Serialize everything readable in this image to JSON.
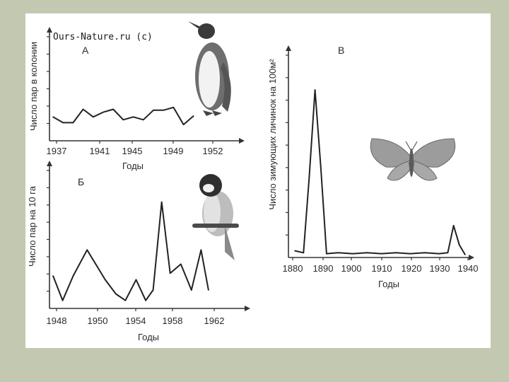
{
  "watermark": "Ours-Nature.ru (c)",
  "chart_data": [
    {
      "type": "line",
      "panel_label": "А",
      "xlabel": "Годы",
      "ylabel": "Число пар в колонии",
      "x_ticks": [
        1937,
        1941,
        1945,
        1949,
        1952
      ],
      "xlim": [
        1937,
        1952
      ],
      "ylim": [
        0,
        10
      ],
      "x": [
        1937,
        1938,
        1939,
        1940,
        1941,
        1942,
        1943,
        1944,
        1945,
        1946,
        1947,
        1948,
        1949,
        1950,
        1951
      ],
      "y": [
        2.2,
        1.6,
        1.6,
        3.0,
        2.2,
        2.7,
        3.0,
        1.9,
        2.2,
        1.9,
        2.9,
        2.9,
        3.2,
        1.4,
        2.3
      ],
      "picture": "penguin-icon",
      "grid": false
    },
    {
      "type": "line",
      "panel_label": "Б",
      "xlabel": "Годы",
      "ylabel": "Число пар на 10 га",
      "x_ticks": [
        1948,
        1950,
        1954,
        1958,
        1962
      ],
      "xlim": [
        1947.6,
        1963.2
      ],
      "ylim": [
        0,
        10
      ],
      "x": [
        1947.6,
        1948.5,
        1949.5,
        1950.8,
        1952.5,
        1953.5,
        1954.4,
        1955.4,
        1956.3,
        1957.0,
        1957.8,
        1958.6,
        1959.6,
        1960.6,
        1961.5,
        1962.2
      ],
      "y": [
        2.3,
        0.4,
        2.3,
        4.3,
        2.0,
        0.9,
        0.4,
        2.0,
        0.4,
        1.2,
        8.0,
        2.5,
        3.2,
        1.2,
        4.3,
        1.2
      ],
      "picture": "tit-bird-icon",
      "grid": false
    },
    {
      "type": "line",
      "panel_label": "В",
      "xlabel": "Годы",
      "ylabel": "Число зимующих личинок на 100м²",
      "x_ticks": [
        1880,
        1890,
        1900,
        1910,
        1920,
        1930,
        1940
      ],
      "xlim": [
        1880,
        1940
      ],
      "ylim": [
        0,
        100
      ],
      "x": [
        1880,
        1883,
        1885,
        1887,
        1889,
        1891,
        1895,
        1900,
        1905,
        1910,
        1915,
        1920,
        1925,
        1930,
        1933,
        1935,
        1937,
        1939
      ],
      "y": [
        2,
        1,
        40,
        85,
        45,
        0.5,
        1,
        0.5,
        1,
        0.5,
        1,
        0.5,
        1,
        0.5,
        1,
        15,
        5,
        0
      ],
      "picture": "moth-icon",
      "grid": false
    }
  ]
}
